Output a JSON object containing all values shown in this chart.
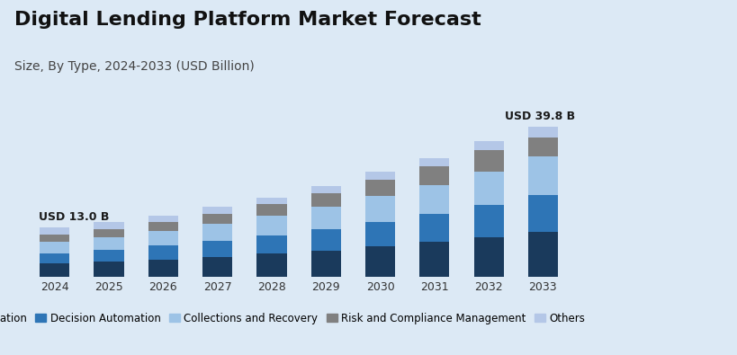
{
  "title": "Digital Lending Platform Market Forecast",
  "subtitle": "Size, By Type, 2024-2033 (USD Billion)",
  "years": [
    2024,
    2025,
    2026,
    2027,
    2028,
    2029,
    2030,
    2031,
    2032,
    2033
  ],
  "label_start": "USD 13.0 B",
  "label_end": "USD 39.8 B",
  "series": {
    "Loan Origination": [
      3.5,
      4.0,
      4.6,
      5.3,
      6.1,
      7.0,
      8.1,
      9.2,
      10.5,
      12.0
    ],
    "Decision Automation": [
      2.8,
      3.2,
      3.7,
      4.2,
      4.9,
      5.6,
      6.5,
      7.4,
      8.5,
      9.7
    ],
    "Collections and Recovery": [
      3.0,
      3.4,
      3.9,
      4.5,
      5.2,
      5.9,
      6.8,
      7.8,
      8.9,
      10.2
    ],
    "Risk and Compliance Management": [
      1.8,
      2.1,
      2.4,
      2.8,
      3.2,
      3.7,
      4.3,
      4.9,
      5.6,
      4.9
    ],
    "Others": [
      1.9,
      1.8,
      1.7,
      1.7,
      1.6,
      1.8,
      2.1,
      2.2,
      2.5,
      3.0
    ]
  },
  "colors": {
    "Loan Origination": "#1a3a5c",
    "Decision Automation": "#2e75b6",
    "Collections and Recovery": "#9dc3e6",
    "Risk and Compliance Management": "#808080",
    "Others": "#b4c7e7"
  },
  "totals": [
    13.0,
    14.5,
    16.3,
    18.5,
    21.0,
    24.0,
    27.8,
    31.5,
    36.0,
    39.8
  ],
  "background_color": "#dce9f5",
  "bar_width": 0.55,
  "ylim": [
    0,
    47
  ],
  "title_fontsize": 16,
  "subtitle_fontsize": 10,
  "legend_fontsize": 8.5,
  "tick_fontsize": 9,
  "annotation_fontsize": 9
}
